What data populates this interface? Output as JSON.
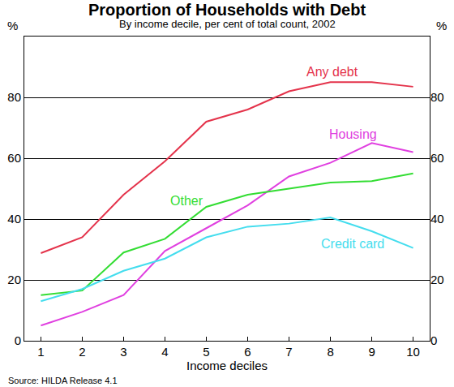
{
  "chart_data": {
    "type": "line",
    "title": "Proportion of Households with Debt",
    "subtitle": "By income decile, per cent of total count, 2002",
    "x_label": "Income deciles",
    "y_label": "%",
    "source": "Source: HILDA Release 4.1",
    "x": [
      1,
      2,
      3,
      4,
      5,
      6,
      7,
      8,
      9,
      10
    ],
    "series": [
      {
        "name": "Any debt",
        "color": "#e4334b",
        "values": [
          28.8,
          34,
          48,
          59,
          72,
          76,
          82,
          85,
          85,
          83.5
        ]
      },
      {
        "name": "Housing",
        "color": "#e040e0",
        "values": [
          5,
          9.5,
          15,
          29.5,
          37,
          44.5,
          54,
          58.5,
          65,
          62
        ]
      },
      {
        "name": "Other",
        "color": "#33dd33",
        "values": [
          15,
          16.5,
          29,
          33.5,
          44,
          48,
          50,
          52,
          52.5,
          55
        ]
      },
      {
        "name": "Credit card",
        "color": "#44ddee",
        "values": [
          13,
          17,
          23,
          27,
          34,
          37.5,
          38.5,
          40.5,
          36,
          30.5
        ]
      }
    ],
    "xlim": [
      0.6,
      10.4
    ],
    "xticks": [
      1,
      2,
      3,
      4,
      5,
      6,
      7,
      8,
      9,
      10
    ],
    "ylim": [
      0,
      100
    ],
    "yticks": [
      0,
      20,
      40,
      60,
      80
    ],
    "grid": true
  }
}
